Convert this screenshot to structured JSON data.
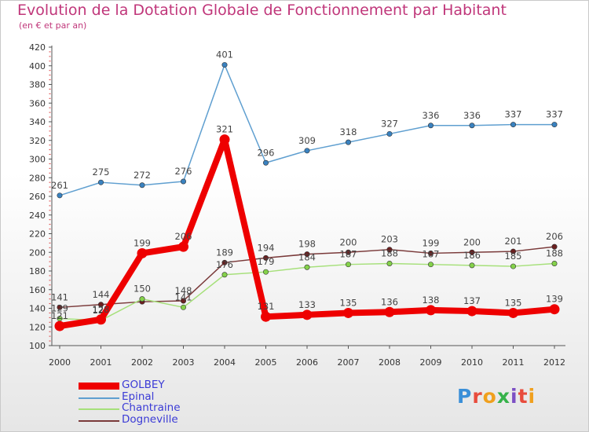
{
  "title": "Evolution de la Dotation Globale de Fonctionnement par Habitant",
  "subtitle": "(en € et par an)",
  "logo": {
    "text": "Proxiti"
  },
  "chart_data": {
    "type": "line",
    "title": "Evolution de la Dotation Globale de Fonctionnement par Habitant",
    "subtitle": "(en € et par an)",
    "xlabel": "",
    "ylabel": "",
    "x": [
      "2000",
      "2001",
      "2002",
      "2003",
      "2004",
      "2005",
      "2006",
      "2007",
      "2008",
      "2009",
      "2010",
      "2011",
      "2012"
    ],
    "yticks": [
      100,
      120,
      140,
      160,
      180,
      200,
      220,
      240,
      260,
      280,
      300,
      320,
      340,
      360,
      380,
      400,
      420
    ],
    "ylim": [
      100,
      420
    ],
    "grid": false,
    "legend_position": "bottom-left",
    "series": [
      {
        "name": "Epinal",
        "color": "#5f9fd0",
        "marker": "#3a82c0",
        "values": [
          261,
          275,
          272,
          276,
          401,
          296,
          309,
          318,
          327,
          336,
          336,
          337,
          337
        ],
        "labels": [
          "261",
          "275",
          "272",
          "276",
          "401",
          "296",
          "309",
          "318",
          "327",
          "336",
          "336",
          "337",
          "337"
        ]
      },
      {
        "name": "Dogneville",
        "color": "#7a3a3a",
        "marker": "#6b1f1f",
        "values": [
          141,
          144,
          147,
          148,
          189,
          194,
          198,
          200,
          203,
          199,
          200,
          201,
          206
        ],
        "labels": [
          "141",
          "144",
          "",
          "148",
          "189",
          "194",
          "198",
          "200",
          "203",
          "199",
          "200",
          "201",
          "206"
        ]
      },
      {
        "name": "Chantraine",
        "color": "#a6e07a",
        "marker": "#84d24a",
        "values": [
          129,
          127,
          150,
          141,
          176,
          179,
          184,
          187,
          188,
          187,
          186,
          185,
          188
        ],
        "labels": [
          "129",
          "127",
          "150",
          "141",
          "176",
          "179",
          "184",
          "187",
          "188",
          "187",
          "186",
          "185",
          "188"
        ]
      },
      {
        "name": "GOLBEY",
        "color": "#ee0000",
        "marker": "#ee0000",
        "values": [
          121,
          128,
          199,
          206,
          321,
          131,
          133,
          135,
          136,
          138,
          137,
          135,
          139
        ],
        "labels": [
          "121",
          "128",
          "199",
          "206",
          "321",
          "131",
          "133",
          "135",
          "136",
          "138",
          "137",
          "135",
          "139"
        ]
      }
    ]
  }
}
